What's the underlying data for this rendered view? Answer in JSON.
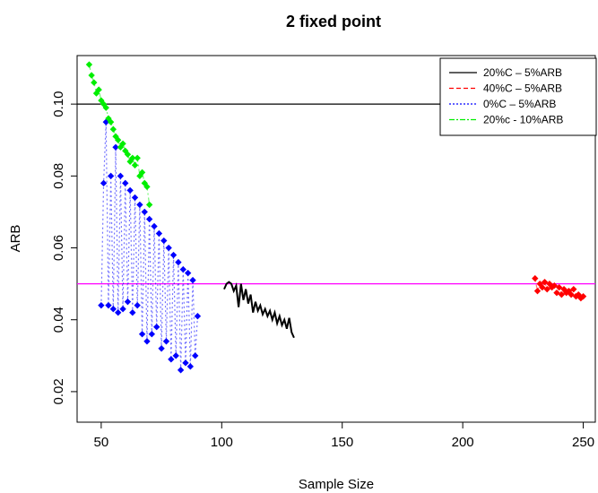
{
  "chart_data": {
    "type": "line",
    "title": "2 fixed point",
    "xlabel": "Sample Size",
    "ylabel": "ARB",
    "xlim": [
      40,
      255
    ],
    "ylim": [
      0.0115,
      0.1135
    ],
    "xticks": [
      50,
      100,
      150,
      200,
      250
    ],
    "yticks": [
      0.02,
      0.04,
      0.06,
      0.08,
      0.1
    ],
    "ytick_labels": [
      "0.02",
      "0.04",
      "0.06",
      "0.08",
      "0.10"
    ],
    "legend_position": "top-right",
    "grid": false,
    "reference_lines": [
      {
        "y": 0.1,
        "color": "#000000"
      },
      {
        "y": 0.05,
        "color": "#ff00ff"
      }
    ],
    "series": [
      {
        "name": "20%C – 5%ARB",
        "color": "#000000",
        "linestyle": "solid",
        "x": [
          101,
          102,
          103,
          104,
          105,
          106,
          107,
          108,
          109,
          110,
          111,
          112,
          113,
          114,
          115,
          116,
          117,
          118,
          119,
          120,
          121,
          122,
          123,
          124,
          125,
          126,
          127,
          128,
          129,
          130
        ],
        "y": [
          0.0485,
          0.05,
          0.0505,
          0.05,
          0.048,
          0.0495,
          0.0435,
          0.05,
          0.0455,
          0.0485,
          0.0445,
          0.047,
          0.042,
          0.045,
          0.0425,
          0.044,
          0.0415,
          0.043,
          0.041,
          0.0425,
          0.04,
          0.042,
          0.039,
          0.041,
          0.0385,
          0.04,
          0.0375,
          0.0405,
          0.0365,
          0.035
        ]
      },
      {
        "name": "40%C – 5%ARB",
        "color": "#ff0000",
        "linestyle": "dashed",
        "x": [
          230,
          231,
          232,
          233,
          234,
          235,
          236,
          237,
          238,
          239,
          240,
          241,
          242,
          243,
          244,
          245,
          246,
          247,
          248,
          249,
          250
        ],
        "y": [
          0.0515,
          0.048,
          0.05,
          0.049,
          0.0505,
          0.0485,
          0.05,
          0.049,
          0.0495,
          0.0475,
          0.049,
          0.047,
          0.0485,
          0.0475,
          0.048,
          0.047,
          0.0485,
          0.0465,
          0.047,
          0.046,
          0.0465
        ]
      },
      {
        "name": "0%C – 5%ARB",
        "color": "#0000ff",
        "linestyle": "dotted",
        "x": [
          50,
          51,
          52,
          53,
          54,
          55,
          56,
          57,
          58,
          59,
          60,
          61,
          62,
          63,
          64,
          65,
          66,
          67,
          68,
          69,
          70,
          71,
          72,
          73,
          74,
          75,
          76,
          77,
          78,
          79,
          80,
          81,
          82,
          83,
          84,
          85,
          86,
          87,
          88,
          89,
          90
        ],
        "y": [
          0.044,
          0.078,
          0.095,
          0.044,
          0.08,
          0.043,
          0.088,
          0.042,
          0.08,
          0.043,
          0.078,
          0.045,
          0.076,
          0.042,
          0.074,
          0.044,
          0.072,
          0.036,
          0.07,
          0.034,
          0.068,
          0.036,
          0.066,
          0.038,
          0.064,
          0.032,
          0.062,
          0.034,
          0.06,
          0.029,
          0.058,
          0.03,
          0.056,
          0.026,
          0.054,
          0.028,
          0.053,
          0.027,
          0.051,
          0.03,
          0.041
        ]
      },
      {
        "name": "20%c - 10%ARB",
        "color": "#00ee00",
        "linestyle": "dotdash",
        "x": [
          45,
          46,
          47,
          48,
          49,
          50,
          51,
          52,
          53,
          54,
          55,
          56,
          57,
          58,
          59,
          60,
          61,
          62,
          63,
          64,
          65,
          66,
          67,
          68,
          69,
          70
        ],
        "y": [
          0.111,
          0.108,
          0.106,
          0.103,
          0.104,
          0.101,
          0.1,
          0.099,
          0.096,
          0.095,
          0.093,
          0.091,
          0.09,
          0.088,
          0.089,
          0.087,
          0.086,
          0.084,
          0.085,
          0.083,
          0.085,
          0.08,
          0.081,
          0.078,
          0.077,
          0.072
        ]
      }
    ]
  }
}
